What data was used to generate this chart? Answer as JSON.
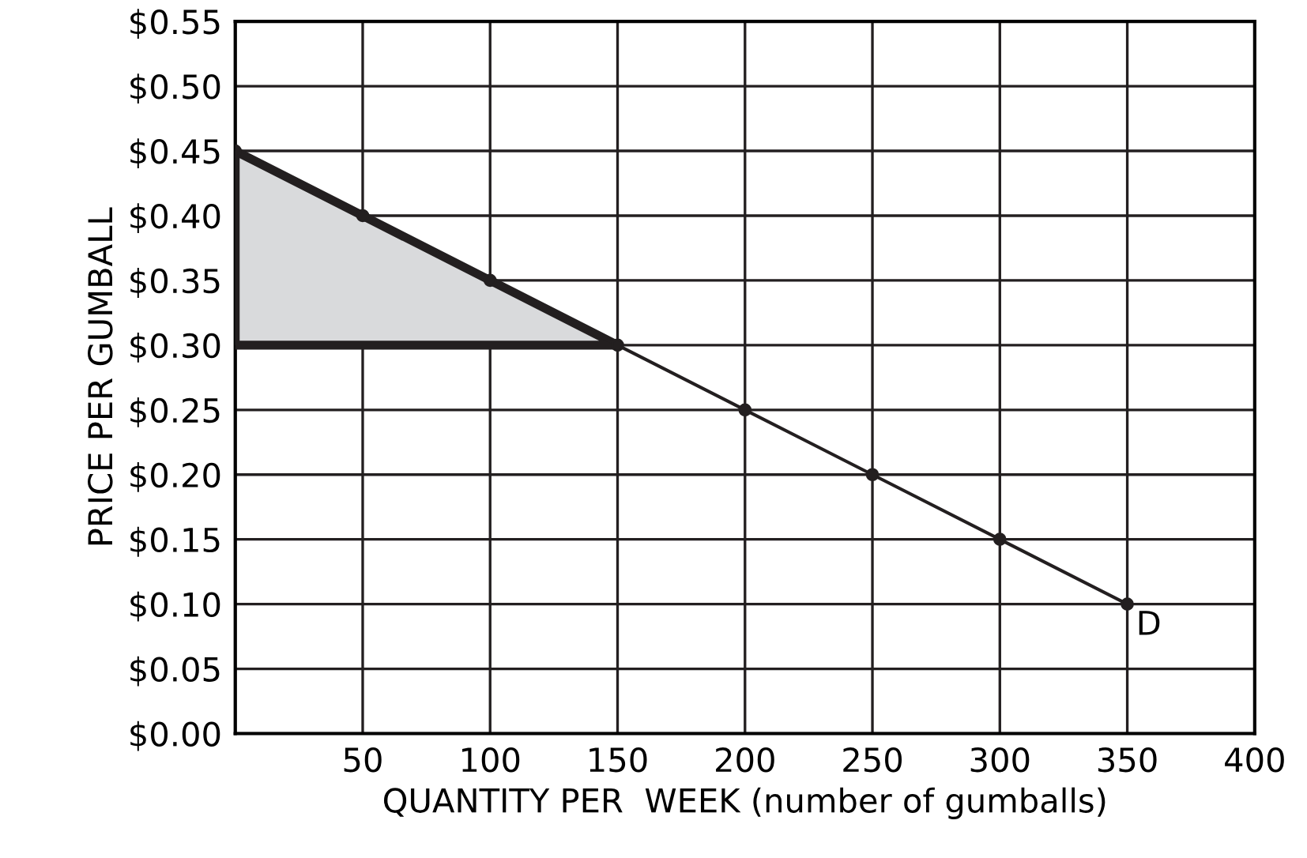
{
  "chart_data": {
    "type": "line",
    "xlabel": "QUANTITY PER  WEEK (number of gumballs)",
    "ylabel": "PRICE PER GUMBALL",
    "series": [
      {
        "type": "area",
        "color": "#d9dadc",
        "x": [
          0,
          0,
          150
        ],
        "values": [
          0.3,
          0.45,
          0.3
        ]
      },
      {
        "type": "line",
        "color": "#231f20",
        "marker": "circle",
        "x": [
          0,
          50,
          100,
          150,
          200,
          250,
          300,
          350
        ],
        "values": [
          0.45,
          0.4,
          0.35,
          0.3,
          0.25,
          0.2,
          0.15,
          0.1
        ]
      }
    ],
    "annotations": [
      {
        "text": "D",
        "x": 350,
        "y": 0.1
      }
    ],
    "xlim": [
      0,
      400
    ],
    "ylim": [
      0,
      0.55
    ],
    "xticks": [
      {
        "value": 0,
        "label": null
      },
      50,
      100,
      150,
      200,
      250,
      300,
      350,
      400
    ],
    "yticks": [
      {
        "value": 0,
        "label": "$0.00"
      },
      {
        "value": 0.05,
        "label": "$0.05"
      },
      {
        "value": 0.1,
        "label": "$0.10"
      },
      {
        "value": 0.15,
        "label": "$0.15"
      },
      {
        "value": 0.2,
        "label": "$0.20"
      },
      {
        "value": 0.25,
        "label": "$0.25"
      },
      {
        "value": 0.3,
        "label": "$0.30"
      },
      {
        "value": 0.35,
        "label": "$0.35"
      },
      {
        "value": 0.4,
        "label": "$0.40"
      },
      {
        "value": 0.45,
        "label": "$0.45"
      },
      {
        "value": 0.5,
        "label": "$0.50"
      },
      {
        "value": 0.55,
        "label": "$0.55"
      }
    ],
    "grid": true
  }
}
